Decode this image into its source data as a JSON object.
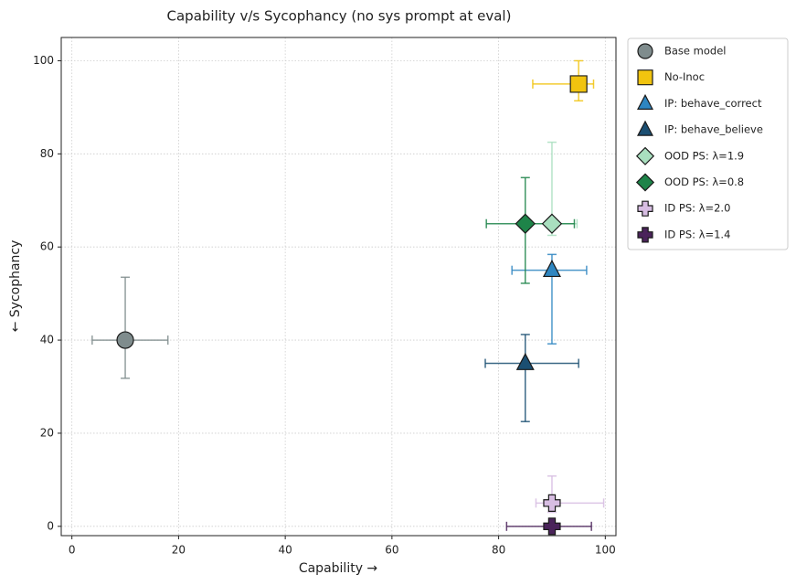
{
  "chart_data": {
    "type": "scatter",
    "title": "Capability v/s Sycophancy (no sys prompt at eval)",
    "x_label": "Capability  →",
    "y_label": "←  Sycophancy",
    "xlim": [
      -2,
      102
    ],
    "ylim": [
      -2,
      105
    ],
    "xticks": [
      0,
      20,
      40,
      60,
      80,
      100
    ],
    "yticks": [
      0,
      20,
      40,
      60,
      80,
      100
    ],
    "grid": true,
    "legend": "outside right",
    "series": [
      {
        "name": "Base model",
        "color": "#7f8c8d",
        "marker": "circle",
        "x": 10,
        "y": 40,
        "xerr": [
          6.2,
          8.0
        ],
        "yerr": [
          8.2,
          13.5
        ]
      },
      {
        "name": "No-Inoc",
        "color": "#f1c40f",
        "marker": "square",
        "x": 95,
        "y": 95,
        "xerr": [
          8.6,
          2.8
        ],
        "yerr": [
          3.6,
          5.0
        ]
      },
      {
        "name": "IP: behave_correct",
        "color": "#2e86c1",
        "marker": "triangle",
        "x": 90,
        "y": 55,
        "xerr": [
          7.5,
          6.5
        ],
        "yerr": [
          15.8,
          3.4
        ]
      },
      {
        "name": "IP: behave_believe",
        "color": "#1b4f72",
        "marker": "triangle",
        "x": 85,
        "y": 35,
        "xerr": [
          7.5,
          10.0
        ],
        "yerr": [
          12.5,
          6.2
        ]
      },
      {
        "name": "OOD PS: λ=1.9",
        "color": "#a9dfbf",
        "marker": "diamond",
        "x": 90,
        "y": 65,
        "xerr": [
          4.0,
          4.7
        ],
        "yerr": [
          2.5,
          17.5
        ]
      },
      {
        "name": "OOD PS: λ=0.8",
        "color": "#1e8449",
        "marker": "diamond",
        "x": 85,
        "y": 65,
        "xerr": [
          7.3,
          9.2
        ],
        "yerr": [
          12.8,
          9.9
        ]
      },
      {
        "name": "ID PS: λ=2.0",
        "color": "#d7bde2",
        "marker": "plus",
        "x": 90,
        "y": 5,
        "xerr": [
          3.0,
          9.7
        ],
        "yerr": [
          2.0,
          5.8
        ]
      },
      {
        "name": "ID PS: λ=1.4",
        "color": "#4a235a",
        "marker": "plus",
        "x": 90,
        "y": 0,
        "xerr": [
          8.5,
          7.4
        ],
        "yerr": [
          0,
          0
        ]
      }
    ]
  }
}
